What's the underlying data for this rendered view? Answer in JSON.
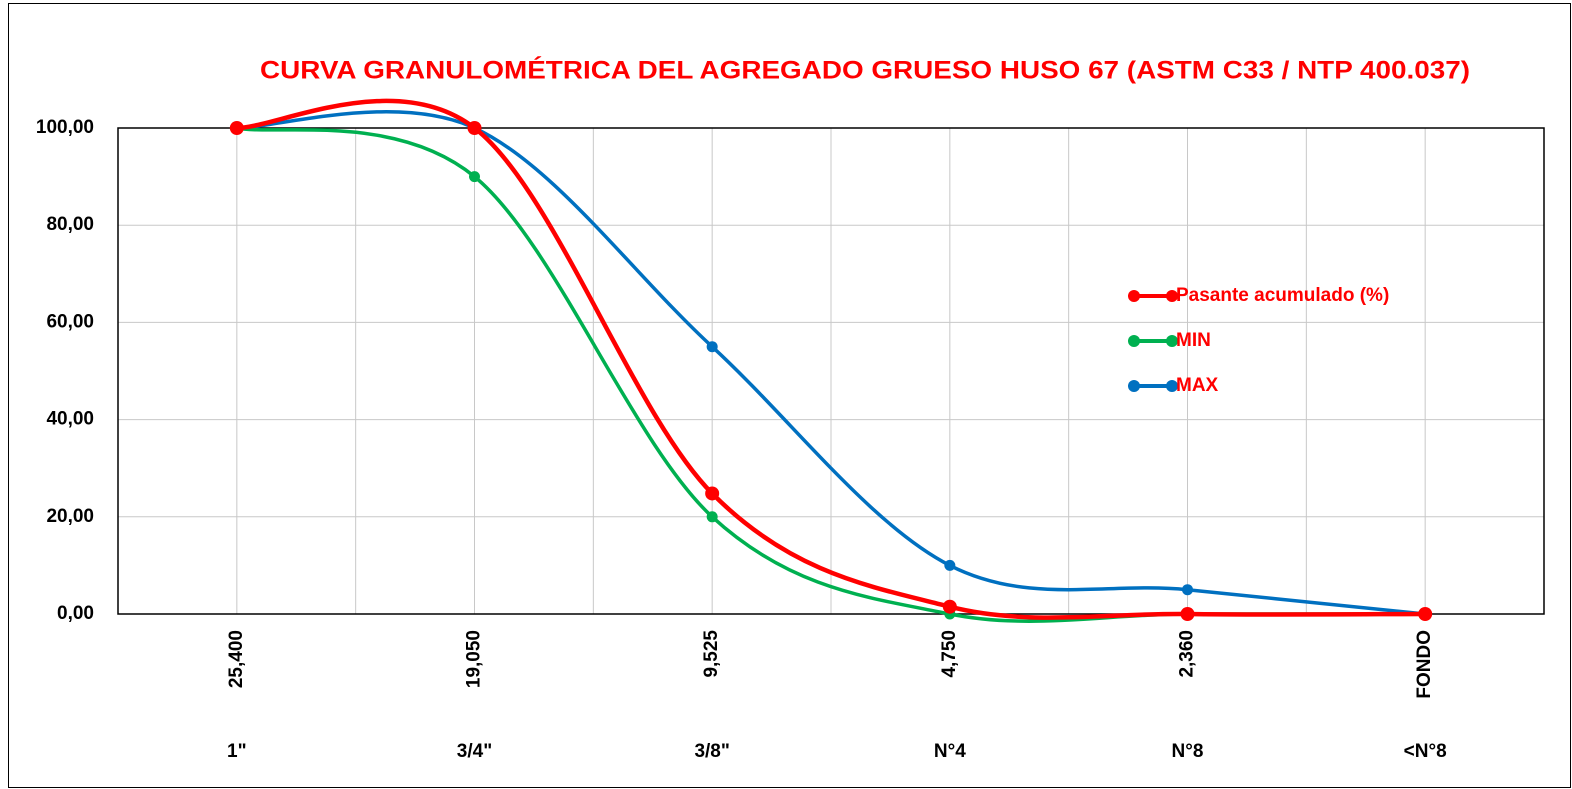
{
  "chart_data": {
    "type": "line",
    "title": "CURVA GRANULOMÉTRICA DEL AGREGADO  GRUESO HUSO 67 (ASTM C33 / NTP 400.037)",
    "categories": [
      "25,400",
      "19,050",
      "9,525",
      "4,750",
      "2,360",
      "FONDO"
    ],
    "sublabels": [
      "1\"",
      "3/4\"",
      "3/8\"",
      "N°4",
      "N°8",
      "<N°8"
    ],
    "series": [
      {
        "name": "Pasante acumulado (%)",
        "color": "#ff0000",
        "values": [
          100,
          100,
          24.8,
          1.5,
          0,
          0
        ]
      },
      {
        "name": "MIN",
        "color": "#00b050",
        "values": [
          100,
          90,
          20,
          0,
          0,
          0
        ]
      },
      {
        "name": "MAX",
        "color": "#0070c0",
        "values": [
          100,
          100,
          55,
          10,
          5,
          0
        ]
      }
    ],
    "ylim": [
      0,
      100
    ],
    "yticks": [
      {
        "value": 0,
        "label": "0,00"
      },
      {
        "value": 20,
        "label": "20,00"
      },
      {
        "value": 40,
        "label": "40,00"
      },
      {
        "value": 60,
        "label": "60,00"
      },
      {
        "value": 80,
        "label": "80,00"
      },
      {
        "value": 100,
        "label": "100,00"
      }
    ],
    "grid": true,
    "smooth": true
  }
}
